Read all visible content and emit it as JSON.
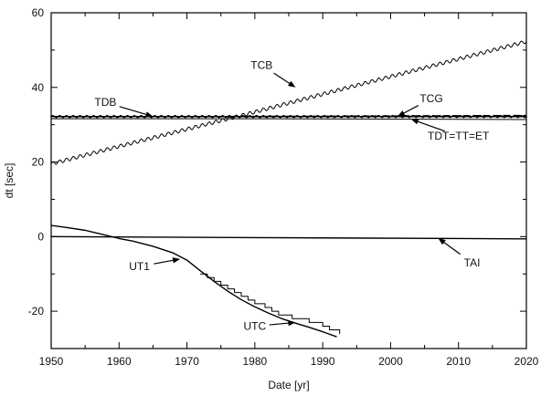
{
  "chart_data": {
    "type": "line",
    "title": "",
    "xlabel": "Date [yr]",
    "ylabel": "dt [sec]",
    "xlim": [
      1950,
      2020
    ],
    "ylim": [
      -30,
      60
    ],
    "x_ticks": [
      1950,
      1960,
      1970,
      1980,
      1990,
      2000,
      2010,
      2020
    ],
    "y_ticks": [
      -20,
      0,
      20,
      40,
      60
    ],
    "grid": false,
    "legend": "none",
    "series": [
      {
        "name": "TCB",
        "style": "wavy",
        "color": "#000000",
        "points": [
          [
            1950,
            19.5
          ],
          [
            1960,
            24.2
          ],
          [
            1970,
            28.8
          ],
          [
            1977,
            32.0
          ],
          [
            1980,
            33.4
          ],
          [
            1990,
            38.2
          ],
          [
            2000,
            42.9
          ],
          [
            2010,
            47.6
          ],
          [
            2020,
            52.3
          ]
        ]
      },
      {
        "name": "TCG",
        "style": "dashed",
        "color": "#000000",
        "points": [
          [
            1950,
            32.2
          ],
          [
            1970,
            32.2
          ],
          [
            1990,
            32.3
          ],
          [
            2020,
            32.5
          ]
        ]
      },
      {
        "name": "TDB",
        "style": "wavy-small",
        "color": "#000000",
        "points": [
          [
            1950,
            32.18
          ],
          [
            1985,
            32.18
          ],
          [
            2020,
            32.18
          ]
        ]
      },
      {
        "name": "TDT=TT=ET",
        "style": "solid",
        "color": "#000000",
        "points": [
          [
            1950,
            32.18
          ],
          [
            1985,
            32.18
          ],
          [
            2020,
            32.18
          ]
        ]
      },
      {
        "name": "UTC",
        "style": "solid-thin",
        "color": "#000000",
        "points": [
          [
            1950,
            31.6
          ],
          [
            1980,
            31.6
          ],
          [
            2020,
            31.4
          ]
        ]
      },
      {
        "name": "TAI",
        "style": "solid",
        "color": "#000000",
        "points": [
          [
            1950,
            0
          ],
          [
            2020,
            -0.6
          ]
        ]
      },
      {
        "name": "UT1",
        "style": "solid",
        "color": "#000000",
        "points": [
          [
            1950,
            3.0
          ],
          [
            1952,
            2.5
          ],
          [
            1955,
            1.7
          ],
          [
            1958,
            0.4
          ],
          [
            1960,
            -0.5
          ],
          [
            1962,
            -1.2
          ],
          [
            1965,
            -2.6
          ],
          [
            1968,
            -4.4
          ],
          [
            1970,
            -6.3
          ],
          [
            1972,
            -9.2
          ],
          [
            1974,
            -12.0
          ],
          [
            1976,
            -14.6
          ],
          [
            1978,
            -16.9
          ],
          [
            1980,
            -18.8
          ],
          [
            1982,
            -20.5
          ],
          [
            1984,
            -22.0
          ],
          [
            1986,
            -23.2
          ],
          [
            1988,
            -24.3
          ],
          [
            1990,
            -25.5
          ],
          [
            1992,
            -26.8
          ]
        ]
      },
      {
        "name": "UTC-steps",
        "style": "steps",
        "color": "#000000",
        "points": [
          [
            1972,
            -10.0
          ],
          [
            1973,
            -11.0
          ],
          [
            1974,
            -12.0
          ],
          [
            1975,
            -13.0
          ],
          [
            1976,
            -14.0
          ],
          [
            1977,
            -15.0
          ],
          [
            1978,
            -16.0
          ],
          [
            1979,
            -17.0
          ],
          [
            1980,
            -18.0
          ],
          [
            1981.5,
            -19.0
          ],
          [
            1982.5,
            -20.0
          ],
          [
            1983.5,
            -21.0
          ],
          [
            1985.5,
            -22.0
          ],
          [
            1988,
            -23.0
          ],
          [
            1990,
            -24.0
          ],
          [
            1991,
            -25.0
          ],
          [
            1992.5,
            -26.0
          ]
        ]
      }
    ],
    "annotations": [
      {
        "label": "TCB",
        "x": 1986,
        "y": 40,
        "tx": 1981,
        "ty": 45
      },
      {
        "label": "TCG",
        "x": 2001,
        "y": 32.2,
        "tx": 2006,
        "ty": 36
      },
      {
        "label": "TDB",
        "x": 1965,
        "y": 32.2,
        "tx": 1958,
        "ty": 35
      },
      {
        "label": "TDT=TT=ET",
        "x": 2003,
        "y": 31.5,
        "tx": 2010,
        "ty": 26
      },
      {
        "label": "TAI",
        "x": 2007,
        "y": -0.4,
        "tx": 2012,
        "ty": -8
      },
      {
        "label": "UT1",
        "x": 1969,
        "y": -6,
        "tx": 1963,
        "ty": -9
      },
      {
        "label": "UTC",
        "x": 1986,
        "y": -23,
        "tx": 1980,
        "ty": -25
      }
    ]
  }
}
